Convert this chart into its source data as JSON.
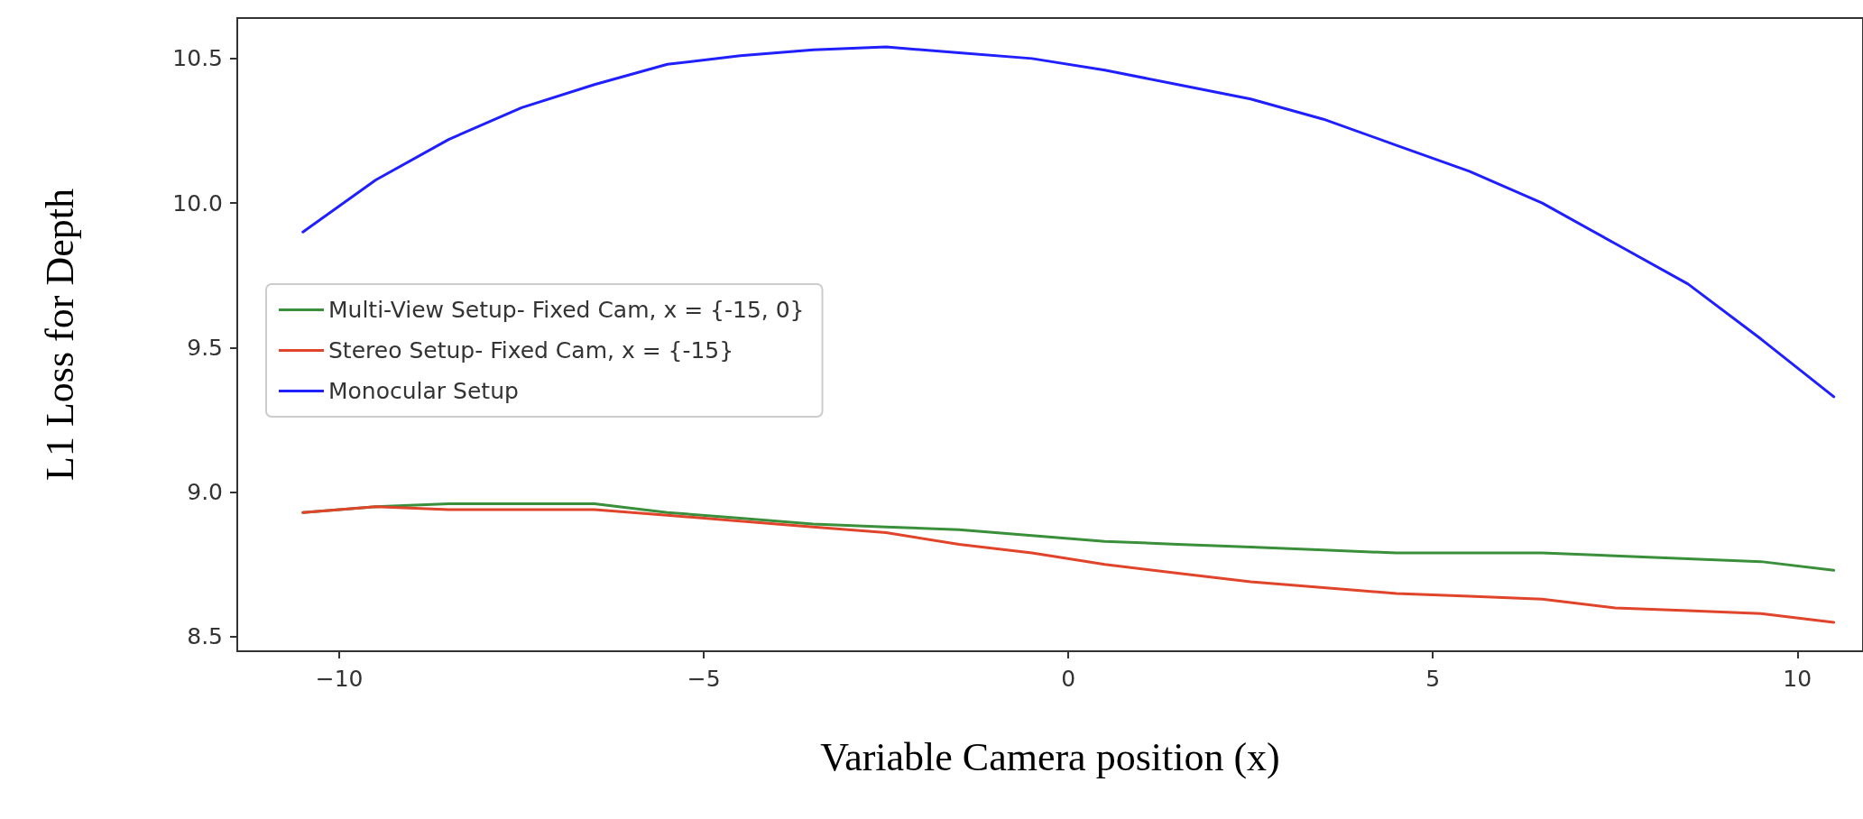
{
  "chart_data": {
    "type": "line",
    "xlabel": "Variable Camera position (x)",
    "ylabel": "L1 Loss for Depth",
    "x": [
      -10.5,
      -9.5,
      -8.5,
      -7.5,
      -6.5,
      -5.5,
      -4.5,
      -3.5,
      -2.5,
      -1.5,
      -0.5,
      0.5,
      1.5,
      2.5,
      3.5,
      4.5,
      5.5,
      6.5,
      7.5,
      8.5,
      9.5,
      10.5
    ],
    "series": [
      {
        "name": "Multi-View Setup- Fixed Cam, x = {-15, 0}",
        "color": "#3a8f3a",
        "values": [
          8.93,
          8.95,
          8.96,
          8.96,
          8.96,
          8.93,
          8.91,
          8.89,
          8.88,
          8.87,
          8.85,
          8.83,
          8.82,
          8.81,
          8.8,
          8.79,
          8.79,
          8.79,
          8.78,
          8.77,
          8.76,
          8.73
        ]
      },
      {
        "name": "Stereo Setup- Fixed Cam, x = {-15}",
        "color": "#e0442a",
        "values": [
          8.93,
          8.95,
          8.94,
          8.94,
          8.94,
          8.92,
          8.9,
          8.88,
          8.86,
          8.82,
          8.79,
          8.75,
          8.72,
          8.69,
          8.67,
          8.65,
          8.64,
          8.63,
          8.6,
          8.59,
          8.58,
          8.55
        ]
      },
      {
        "name": "Monocular Setup",
        "color": "#1f1fff",
        "values": [
          9.9,
          10.08,
          10.22,
          10.33,
          10.41,
          10.48,
          10.51,
          10.53,
          10.54,
          10.52,
          10.5,
          10.46,
          10.41,
          10.36,
          10.29,
          10.2,
          10.11,
          10.0,
          9.86,
          9.72,
          9.53,
          9.33
        ]
      }
    ],
    "xlim": [
      -11.4,
      10.9
    ],
    "ylim": [
      8.45,
      10.64
    ],
    "xticks": [
      {
        "value": -10,
        "label": "−10"
      },
      {
        "value": -5,
        "label": "−5"
      },
      0,
      5,
      10
    ],
    "yticks": [
      8.5,
      {
        "value": 9,
        "label": "9.0"
      },
      9.5,
      {
        "value": 10,
        "label": "10.0"
      },
      10.5
    ],
    "grid": false,
    "legend": "left",
    "marker": "none",
    "line_style": "solid"
  }
}
